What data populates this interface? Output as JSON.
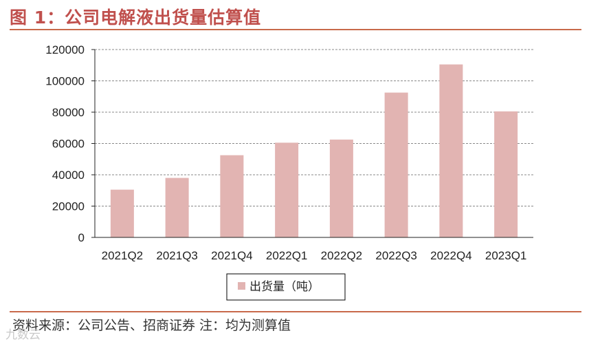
{
  "figure_title": "图 1：公司电解液出货量估算值",
  "source_note": "资料来源：公司公告、招商证券 注：均为测算值",
  "watermark_text": "九数云",
  "colors": {
    "title": "#c0504d",
    "rule": "#c8694a",
    "bar": "#e2b4b2",
    "grid": "#888888",
    "axis": "#222222"
  },
  "chart_data": {
    "type": "bar",
    "title": "",
    "xlabel": "",
    "ylabel": "",
    "categories": [
      "2021Q2",
      "2021Q3",
      "2021Q4",
      "2022Q1",
      "2022Q2",
      "2022Q3",
      "2022Q4",
      "2023Q1"
    ],
    "series": [
      {
        "name": "出货量（吨）",
        "values": [
          30500,
          38000,
          52500,
          60500,
          62500,
          92500,
          110500,
          80500
        ]
      }
    ],
    "ylim": [
      0,
      120000
    ],
    "yticks": [
      "0",
      "20000",
      "40000",
      "60000",
      "80000",
      "100000",
      "120000"
    ],
    "grid": "horizontal-dashed",
    "legend_position": "bottom-center"
  }
}
